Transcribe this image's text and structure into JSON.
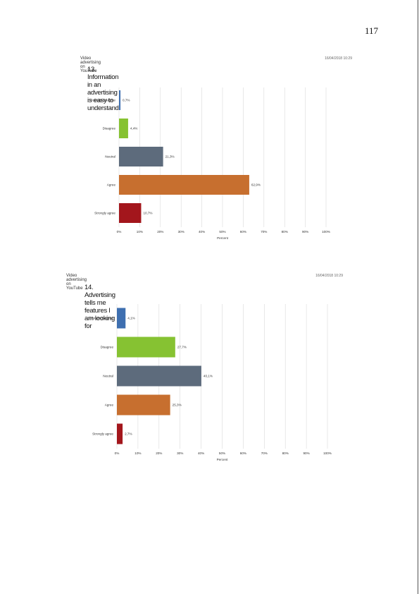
{
  "page": {
    "number": "117"
  },
  "chart_data": [
    {
      "type": "bar",
      "orientation": "horizontal",
      "header": "Video advertising on YouTube",
      "date": "16/04/2018 10:29",
      "title": "13. Information in an advertising is easy to understand",
      "categories": [
        "Strongly disagree",
        "Disagree",
        "Neutral",
        "Agree",
        "Strongly agree"
      ],
      "values": [
        0.7,
        4.4,
        21.3,
        62.9,
        10.7
      ],
      "value_labels": [
        "0,7%",
        "4,4%",
        "21,3%",
        "62,9%",
        "10,7%"
      ],
      "colors": [
        "#3e6fb0",
        "#86c232",
        "#5d6b7c",
        "#c76f2f",
        "#a3161c"
      ],
      "xlabel": "Percent",
      "xlim": [
        0,
        100
      ],
      "xticks": [
        "0%",
        "10%",
        "20%",
        "30%",
        "40%",
        "50%",
        "60%",
        "70%",
        "80%",
        "90%",
        "100%"
      ],
      "grid": true
    },
    {
      "type": "bar",
      "orientation": "horizontal",
      "header": "Video advertising on YouTube",
      "date": "16/04/2018 10:29",
      "title": "14. Advertising tells me features I am looking for",
      "categories": [
        "Strongly disagree",
        "Disagree",
        "Neutral",
        "Agree",
        "Strongly agree"
      ],
      "values": [
        4.1,
        27.7,
        40.1,
        25.3,
        2.7
      ],
      "value_labels": [
        "4,1%",
        "27,7%",
        "40,1%",
        "25,3%",
        "2,7%"
      ],
      "colors": [
        "#3e6fb0",
        "#86c232",
        "#5d6b7c",
        "#c76f2f",
        "#a3161c"
      ],
      "xlabel": "Percent",
      "xlim": [
        0,
        100
      ],
      "xticks": [
        "0%",
        "10%",
        "20%",
        "30%",
        "40%",
        "50%",
        "60%",
        "70%",
        "80%",
        "90%",
        "100%"
      ],
      "grid": true
    }
  ]
}
